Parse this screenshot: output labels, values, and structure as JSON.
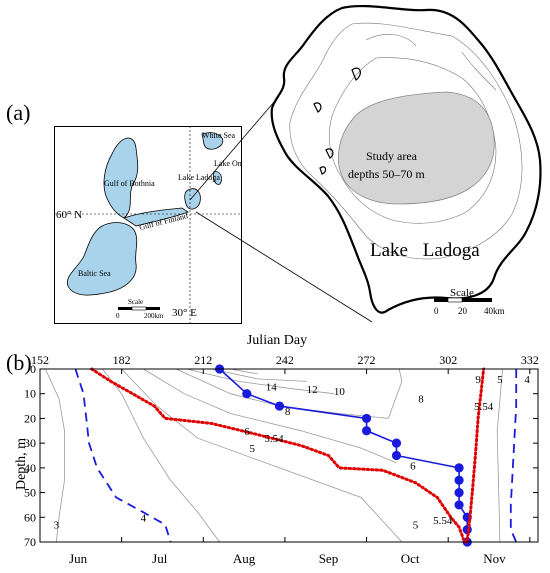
{
  "panel_a": {
    "label": "(a)",
    "inset": {
      "labels": {
        "white_sea": "White Sea",
        "gulf_bothnia": "Gulf of Bothnia",
        "lake_ladoga": "Lake Ladoga",
        "lake_onega": "Lake Onega",
        "gulf_finland": "Gulf of Finland",
        "baltic_sea": "Baltic Sea",
        "lat60": "60° N",
        "lon30": "30° E",
        "scale": "Scale",
        "scale_0": "0",
        "scale_200": "200km"
      },
      "colors": {
        "water": "#a9d3ea",
        "land": "#ffffff"
      }
    },
    "ladoga_map": {
      "study_area": "Study area",
      "study_depths": "depths 50–70 m",
      "lake_name": "Lake Ladoga",
      "scale": "Scale",
      "scale_0": "0",
      "scale_20": "20",
      "scale_40": "40km",
      "colors": {
        "study_area": "#d4d4d4"
      }
    }
  },
  "panel_b": {
    "label": "(b)",
    "chart_data": {
      "type": "line",
      "xlabel": "Julian Day",
      "ylabel": "Depth, m",
      "xlim": [
        152,
        335
      ],
      "ylim": [
        0,
        70
      ],
      "x_ticks": [
        152,
        182,
        212,
        242,
        272,
        302,
        332
      ],
      "y_ticks": [
        0,
        10,
        20,
        30,
        40,
        50,
        60,
        70
      ],
      "month_labels": [
        {
          "label": "Jun",
          "day": 166
        },
        {
          "label": "Jul",
          "day": 196
        },
        {
          "label": "Aug",
          "day": 227
        },
        {
          "label": "Sep",
          "day": 258
        },
        {
          "label": "Oct",
          "day": 288
        },
        {
          "label": "Nov",
          "day": 319
        }
      ],
      "series": [
        {
          "style": "solid-blue-dots",
          "color": "#1a1adc",
          "points": [
            [
              218,
              0
            ],
            [
              228,
              10
            ],
            [
              240,
              15
            ],
            [
              272,
              20
            ],
            [
              272,
              25
            ],
            [
              283,
              30
            ],
            [
              283,
              35
            ],
            [
              306,
              40
            ],
            [
              306,
              45
            ],
            [
              306,
              50
            ],
            [
              306,
              55
            ],
            [
              309,
              60
            ],
            [
              309,
              65
            ],
            [
              309,
              70
            ]
          ]
        },
        {
          "style": "red-dotted",
          "color": "#e00000",
          "points": [
            [
              171,
              0
            ],
            [
              178,
              5
            ],
            [
              186,
              10
            ],
            [
              194,
              15
            ],
            [
              198,
              20
            ],
            [
              215,
              22
            ],
            [
              230,
              26
            ],
            [
              248,
              31
            ],
            [
              258,
              35
            ],
            [
              262,
              40
            ],
            [
              278,
              41
            ],
            [
              290,
              46
            ],
            [
              298,
              52
            ],
            [
              303,
              60
            ],
            [
              306,
              64
            ],
            [
              308,
              70
            ],
            [
              309,
              70
            ],
            [
              310,
              60
            ],
            [
              311,
              48
            ],
            [
              312,
              35
            ],
            [
              313,
              20
            ],
            [
              314,
              10
            ],
            [
              315,
              0
            ]
          ]
        },
        {
          "style": "blue-dashed",
          "color": "#1a1adc",
          "points": [
            [
              165,
              0
            ],
            [
              168,
              10
            ],
            [
              169,
              20
            ],
            [
              170,
              30
            ],
            [
              173,
              40
            ],
            [
              180,
              52
            ],
            [
              190,
              58
            ],
            [
              198,
              63
            ],
            [
              200,
              70
            ]
          ]
        },
        {
          "style": "blue-dashed",
          "color": "#1a1adc",
          "points": [
            [
              327,
              0
            ],
            [
              327,
              15
            ],
            [
              326,
              35
            ],
            [
              325,
              55
            ],
            [
              325,
              65
            ],
            [
              327,
              70
            ]
          ]
        }
      ],
      "contours": [
        {
          "label": "3",
          "points": [
            [
              154,
              0
            ],
            [
              159,
              12
            ],
            [
              161,
              25
            ],
            [
              161,
              45
            ],
            [
              159,
              60
            ],
            [
              158,
              70
            ]
          ]
        },
        {
          "label": "4",
          "points": [
            [
              175,
              0
            ],
            [
              182,
              10
            ],
            [
              190,
              28
            ],
            [
              200,
              45
            ],
            [
              210,
              58
            ],
            [
              218,
              70
            ]
          ]
        },
        {
          "label": "5",
          "points": [
            [
              182,
              0
            ],
            [
              195,
              15
            ],
            [
              210,
              28
            ],
            [
              240,
              40
            ],
            [
              270,
              52
            ],
            [
              285,
              70
            ]
          ]
        },
        {
          "label": "5",
          "points": [
            [
              322,
              0
            ],
            [
              320,
              25
            ],
            [
              321,
              70
            ]
          ]
        },
        {
          "label": "6",
          "points": [
            [
              190,
              0
            ],
            [
              205,
              10
            ],
            [
              222,
              18
            ],
            [
              248,
              25
            ],
            [
              270,
              32
            ],
            [
              283,
              38
            ]
          ]
        },
        {
          "label": "8",
          "points": [
            [
              202,
              0
            ],
            [
              222,
              10
            ],
            [
              240,
              15
            ],
            [
              262,
              18
            ],
            [
              280,
              20
            ]
          ]
        },
        {
          "label": "8",
          "points": [
            [
              280,
              20
            ],
            [
              285,
              5
            ],
            [
              284,
              0
            ]
          ]
        },
        {
          "label": "10",
          "points": [
            [
              206,
              0
            ],
            [
              225,
              5
            ],
            [
              245,
              8
            ],
            [
              260,
              10
            ]
          ]
        },
        {
          "label": "12",
          "points": [
            [
              215,
              0
            ],
            [
              232,
              4
            ],
            [
              250,
              5
            ]
          ]
        },
        {
          "label": "14",
          "points": [
            [
              222,
              0
            ],
            [
              232,
              2
            ]
          ]
        }
      ],
      "contour_labels": [
        {
          "text": "14",
          "x": 237,
          "y": 7
        },
        {
          "text": "12",
          "x": 252,
          "y": 8
        },
        {
          "text": "10",
          "x": 262,
          "y": 9
        },
        {
          "text": "8",
          "x": 243,
          "y": 17
        },
        {
          "text": "6",
          "x": 228,
          "y": 25
        },
        {
          "text": "5.54",
          "x": 238,
          "y": 28
        },
        {
          "text": "5",
          "x": 230,
          "y": 32
        },
        {
          "text": "8",
          "x": 292,
          "y": 12
        },
        {
          "text": "6",
          "x": 289,
          "y": 39
        },
        {
          "text": "5.54",
          "x": 300,
          "y": 61
        },
        {
          "text": "5",
          "x": 290,
          "y": 63
        },
        {
          "text": "9",
          "x": 313,
          "y": 4
        },
        {
          "text": "5.54",
          "x": 315,
          "y": 15
        },
        {
          "text": "5",
          "x": 321,
          "y": 4
        },
        {
          "text": "4",
          "x": 331,
          "y": 4
        },
        {
          "text": "4",
          "x": 190,
          "y": 60
        },
        {
          "text": "3",
          "x": 158,
          "y": 63
        }
      ]
    }
  }
}
